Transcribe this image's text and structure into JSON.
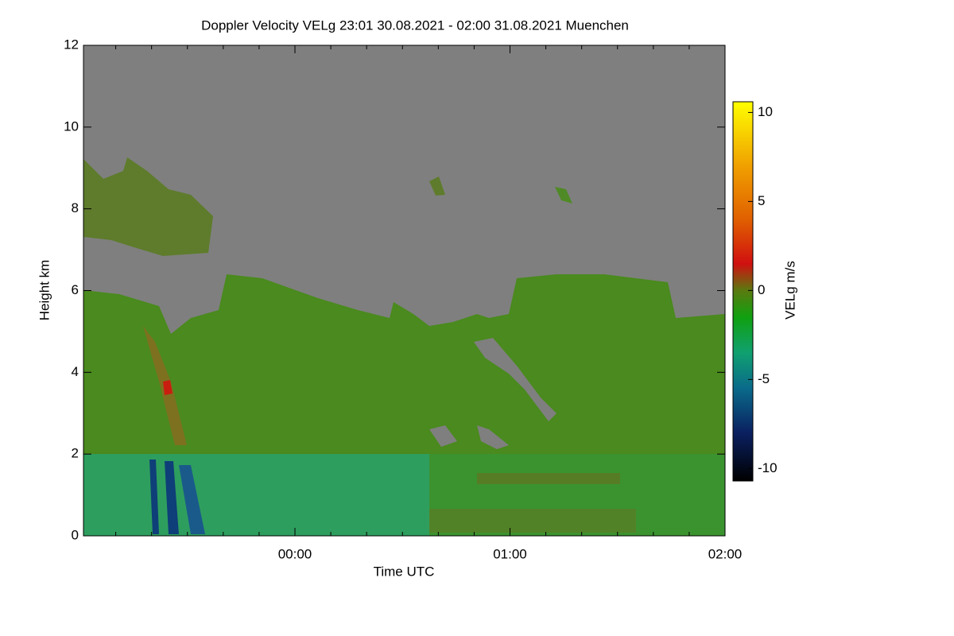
{
  "chart_data": {
    "type": "heatmap",
    "title": "Doppler Velocity VELg   23:01 30.08.2021 - 02:00 31.08.2021 Muenchen",
    "xlabel": "Time UTC",
    "ylabel": "Height km",
    "colorbar_label": "VELg m/s",
    "xlim": [
      -59,
      120
    ],
    "xticks": [
      {
        "value": 0,
        "label": "00:00"
      },
      {
        "value": 60,
        "label": "01:00"
      },
      {
        "value": 120,
        "label": "02:00"
      }
    ],
    "xminorticks": [
      -50,
      -40,
      -30,
      -20,
      -10,
      10,
      20,
      30,
      40,
      50,
      70,
      80,
      90,
      100,
      110
    ],
    "ylim": [
      0,
      12
    ],
    "yticks": [
      0,
      2,
      4,
      6,
      8,
      10,
      12
    ],
    "clim": [
      -10.7,
      10.6
    ],
    "cticks": [
      -10,
      -5,
      0,
      5,
      10
    ],
    "colorscale": [
      [
        -10.7,
        "#000000"
      ],
      [
        -8,
        "#0a2060"
      ],
      [
        -5.5,
        "#0a6a8a"
      ],
      [
        -3.5,
        "#10a070"
      ],
      [
        -1.5,
        "#10a010"
      ],
      [
        0,
        "#5a7a10"
      ],
      [
        1.5,
        "#d01010"
      ],
      [
        4,
        "#e06000"
      ],
      [
        7,
        "#f0a000"
      ],
      [
        10.6,
        "#ffff00"
      ]
    ]
  }
}
